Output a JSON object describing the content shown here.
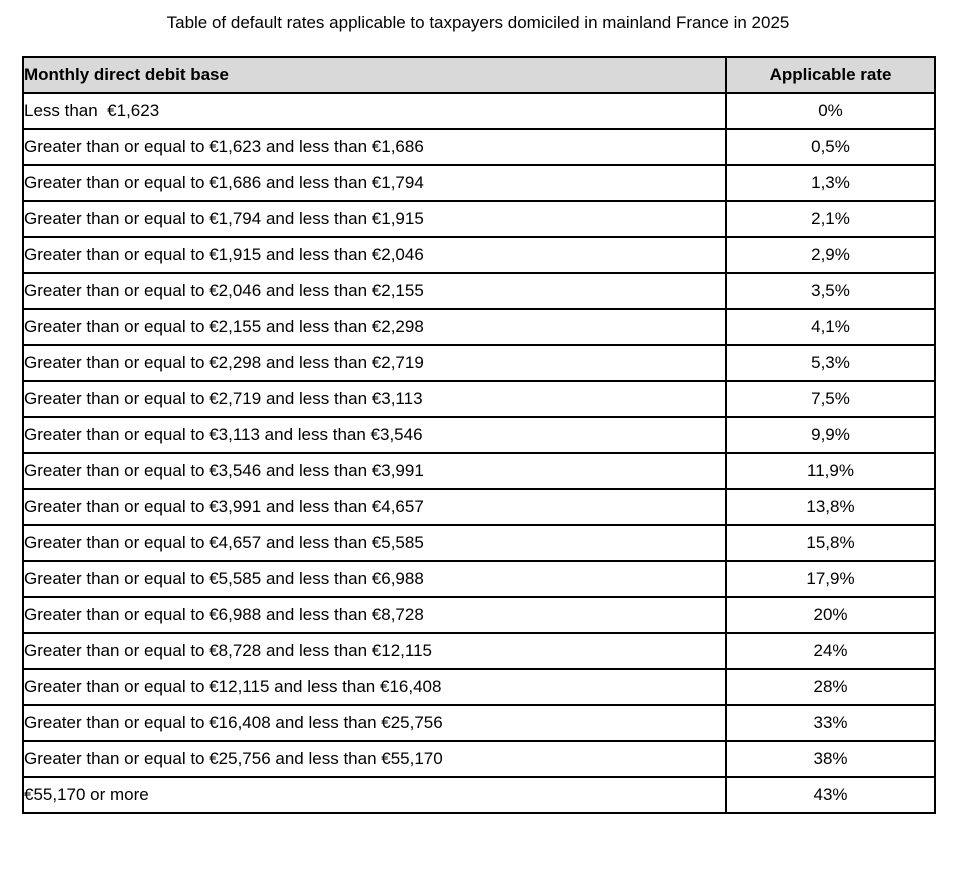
{
  "title": "Table of default rates applicable to taxpayers domiciled in mainland France in 2025",
  "colors": {
    "header_bg": "#d9d9d9",
    "border": "#000000",
    "page_bg": "#ffffff",
    "text": "#000000"
  },
  "table": {
    "columns": [
      "Monthly direct debit base",
      "Applicable rate"
    ],
    "rows": [
      {
        "base": "Less than  €1,623",
        "rate": "0%"
      },
      {
        "base": "Greater than or equal to €1,623 and less than €1,686",
        "rate": "0,5%"
      },
      {
        "base": "Greater than or equal to €1,686 and less than €1,794",
        "rate": "1,3%"
      },
      {
        "base": "Greater than or equal to €1,794 and less than €1,915",
        "rate": "2,1%"
      },
      {
        "base": "Greater than or equal to €1,915 and less than €2,046",
        "rate": "2,9%"
      },
      {
        "base": "Greater than or equal to €2,046 and less than €2,155",
        "rate": "3,5%"
      },
      {
        "base": "Greater than or equal to €2,155 and less than €2,298",
        "rate": "4,1%"
      },
      {
        "base": "Greater than or equal to €2,298 and less than €2,719",
        "rate": "5,3%"
      },
      {
        "base": "Greater than or equal to €2,719 and less than €3,113",
        "rate": "7,5%"
      },
      {
        "base": "Greater than or equal to €3,113 and less than €3,546",
        "rate": "9,9%"
      },
      {
        "base": "Greater than or equal to €3,546 and less than €3,991",
        "rate": "11,9%"
      },
      {
        "base": "Greater than or equal to €3,991 and less than €4,657",
        "rate": "13,8%"
      },
      {
        "base": "Greater than or equal to €4,657 and less than €5,585",
        "rate": "15,8%"
      },
      {
        "base": "Greater than or equal to €5,585 and less than €6,988",
        "rate": "17,9%"
      },
      {
        "base": "Greater than or equal to €6,988 and less than €8,728",
        "rate": "20%"
      },
      {
        "base": "Greater than or equal to €8,728 and less than €12,115",
        "rate": "24%"
      },
      {
        "base": "Greater than or equal to €12,115 and less than €16,408",
        "rate": "28%"
      },
      {
        "base": "Greater than or equal to €16,408 and less than €25,756",
        "rate": "33%"
      },
      {
        "base": "Greater than or equal to €25,756 and less than €55,170",
        "rate": "38%"
      },
      {
        "base": "€55,170 or more",
        "rate": "43%"
      }
    ]
  }
}
